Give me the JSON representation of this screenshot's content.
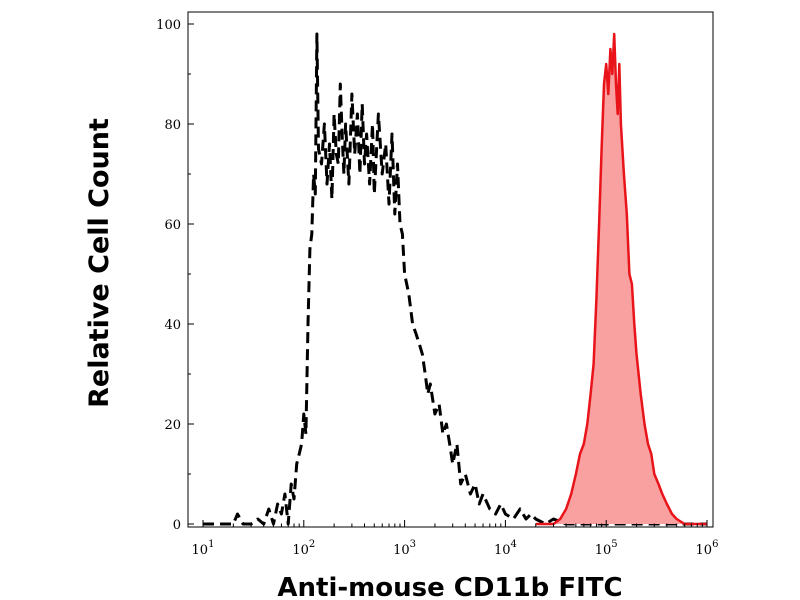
{
  "chart_data": {
    "type": "area",
    "title": "",
    "xlabel": "Anti-mouse CD11b FITC",
    "ylabel": "Relative Cell Count",
    "x_scale": "log",
    "xlim": [
      10,
      1000000
    ],
    "ylim": [
      0,
      100
    ],
    "grid": false,
    "x_ticks": [
      {
        "value": 10,
        "base": "10",
        "exp": "1"
      },
      {
        "value": 100,
        "base": "10",
        "exp": "2"
      },
      {
        "value": 1000,
        "base": "10",
        "exp": "3"
      },
      {
        "value": 10000,
        "base": "10",
        "exp": "4"
      },
      {
        "value": 100000,
        "base": "10",
        "exp": "5"
      },
      {
        "value": 1000000,
        "base": "10",
        "exp": "6"
      }
    ],
    "y_ticks": [
      {
        "value": 0,
        "label": "0"
      },
      {
        "value": 20,
        "label": "20"
      },
      {
        "value": 40,
        "label": "40"
      },
      {
        "value": 60,
        "label": "60"
      },
      {
        "value": 80,
        "label": "80"
      },
      {
        "value": 100,
        "label": "100"
      }
    ],
    "series": [
      {
        "style": "dashed-black-line",
        "color": "#000000",
        "x": [
          10,
          15,
          20,
          22,
          25,
          30,
          35,
          40,
          45,
          50,
          55,
          60,
          65,
          70,
          75,
          80,
          85,
          90,
          95,
          100,
          105,
          110,
          115,
          120,
          125,
          130,
          135,
          140,
          150,
          160,
          170,
          180,
          190,
          200,
          210,
          220,
          230,
          240,
          250,
          260,
          280,
          300,
          320,
          340,
          360,
          380,
          400,
          420,
          450,
          480,
          500,
          550,
          600,
          650,
          700,
          750,
          800,
          850,
          900,
          950,
          1000,
          1100,
          1200,
          1300,
          1400,
          1500,
          1600,
          1700,
          1800,
          2000,
          2200,
          2400,
          2600,
          2800,
          3000,
          3300,
          3600,
          4000,
          4500,
          5000,
          5500,
          6000,
          7000,
          8000,
          9000,
          10000,
          12000,
          14000,
          16000,
          18000,
          20000,
          25000,
          30000,
          40000,
          1000000
        ],
        "y": [
          0,
          0,
          0,
          2,
          0,
          0,
          1,
          0,
          3,
          0,
          4,
          2,
          6,
          0,
          8,
          5,
          12,
          14,
          16,
          22,
          18,
          40,
          55,
          58,
          70,
          66,
          98,
          75,
          72,
          80,
          68,
          76,
          65,
          82,
          74,
          72,
          88,
          78,
          70,
          80,
          68,
          86,
          74,
          82,
          70,
          84,
          72,
          78,
          68,
          80,
          66,
          82,
          70,
          76,
          64,
          78,
          62,
          72,
          60,
          58,
          50,
          46,
          40,
          38,
          36,
          34,
          30,
          26,
          28,
          22,
          24,
          18,
          20,
          16,
          12,
          16,
          8,
          10,
          6,
          8,
          4,
          6,
          3,
          2,
          4,
          2,
          1,
          3,
          1,
          2,
          1,
          0,
          1,
          0,
          0
        ]
      },
      {
        "style": "red-filled-area",
        "color": "#e8141a",
        "fill": "#f9a0a0",
        "x": [
          20000,
          30000,
          35000,
          40000,
          45000,
          50000,
          55000,
          60000,
          65000,
          70000,
          75000,
          80000,
          85000,
          90000,
          95000,
          100000,
          105000,
          110000,
          115000,
          120000,
          125000,
          130000,
          135000,
          140000,
          150000,
          160000,
          170000,
          180000,
          190000,
          200000,
          220000,
          240000,
          260000,
          280000,
          300000,
          330000,
          360000,
          400000,
          450000,
          500000,
          600000,
          1000000
        ],
        "y": [
          0,
          0,
          1,
          3,
          6,
          10,
          14,
          16,
          20,
          26,
          32,
          45,
          60,
          75,
          88,
          92,
          86,
          95,
          90,
          98,
          88,
          82,
          92,
          80,
          70,
          62,
          50,
          48,
          40,
          34,
          26,
          20,
          16,
          14,
          10,
          8,
          6,
          4,
          2,
          1,
          0,
          0
        ]
      }
    ]
  }
}
